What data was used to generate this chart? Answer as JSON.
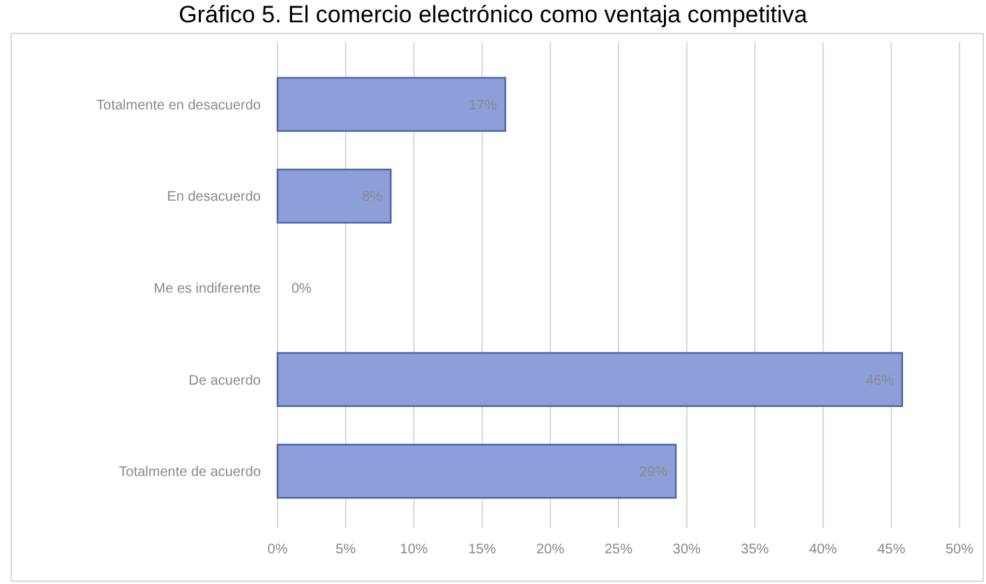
{
  "chart_data": {
    "type": "bar",
    "orientation": "horizontal",
    "title": "Gráfico 5. El comercio electrónico como ventaja competitiva",
    "categories": [
      "Totalmente en desacuerdo",
      "En desacuerdo",
      "Me es indiferente",
      "De acuerdo",
      "Totalmente de acuerdo"
    ],
    "values": [
      16.7,
      8.3,
      0,
      45.8,
      29.2
    ],
    "value_labels": [
      "17%",
      "8%",
      "0%",
      "46%",
      "29%"
    ],
    "color": "#8c9fd9",
    "xlim": [
      0,
      50
    ],
    "xticks": [
      {
        "value": 0,
        "label": "0%"
      },
      {
        "value": 5,
        "label": "5%"
      },
      {
        "value": 10,
        "label": "10%"
      },
      {
        "value": 15,
        "label": "15%"
      },
      {
        "value": 20,
        "label": "20%"
      },
      {
        "value": 25,
        "label": "25%"
      },
      {
        "value": 30,
        "label": "30%"
      },
      {
        "value": 35,
        "label": "35%"
      },
      {
        "value": 40,
        "label": "40%"
      },
      {
        "value": 45,
        "label": "45%"
      },
      {
        "value": 50,
        "label": "50%"
      }
    ],
    "grid": "x"
  }
}
